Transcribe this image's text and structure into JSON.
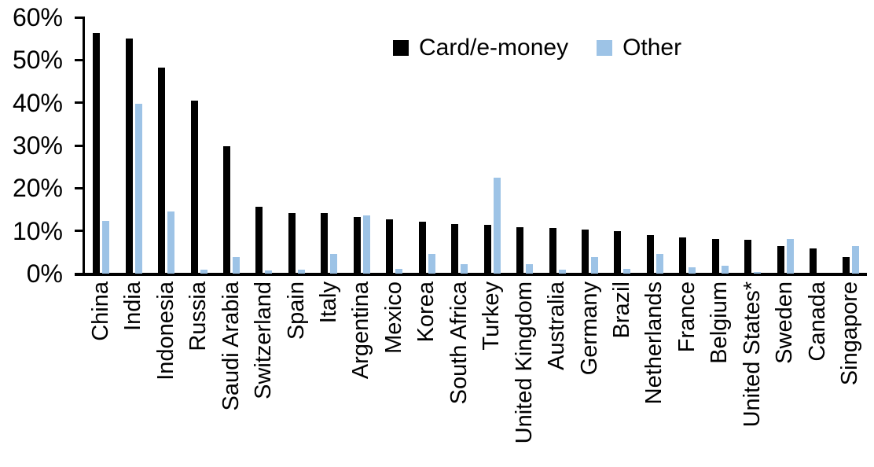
{
  "chart_data": {
    "type": "bar",
    "title": "",
    "xlabel": "",
    "ylabel": "",
    "ylim": [
      0,
      60
    ],
    "y_ticks": [
      "0%",
      "10%",
      "20%",
      "30%",
      "40%",
      "50%",
      "60%"
    ],
    "grid": false,
    "legend_position": "top-center",
    "categories": [
      "China",
      "India",
      "Indonesia",
      "Russia",
      "Saudi Arabia",
      "Switzerland",
      "Spain",
      "Italy",
      "Argentina",
      "Mexico",
      "Korea",
      "South Africa",
      "Turkey",
      "United Kingdom",
      "Australia",
      "Germany",
      "Brazil",
      "Netherlands",
      "France",
      "Belgium",
      "United States*",
      "Sweden",
      "Canada",
      "Singapore"
    ],
    "series": [
      {
        "name": "Card/e-money",
        "color": "#000000",
        "values": [
          56.3,
          55.0,
          48.3,
          40.5,
          29.9,
          15.6,
          14.2,
          14.1,
          13.3,
          12.8,
          12.1,
          11.6,
          11.4,
          10.8,
          10.6,
          10.4,
          9.9,
          9.1,
          8.5,
          8.1,
          7.9,
          6.5,
          5.9,
          3.8
        ]
      },
      {
        "name": "Other",
        "color": "#9DC3E6",
        "values": [
          12.3,
          39.7,
          14.6,
          1.0,
          3.9,
          0.8,
          1.0,
          4.7,
          13.7,
          1.2,
          4.6,
          2.3,
          22.4,
          2.2,
          1.0,
          3.9,
          1.2,
          4.7,
          1.4,
          1.9,
          0.3,
          8.1,
          0.0,
          6.5
        ]
      }
    ]
  }
}
